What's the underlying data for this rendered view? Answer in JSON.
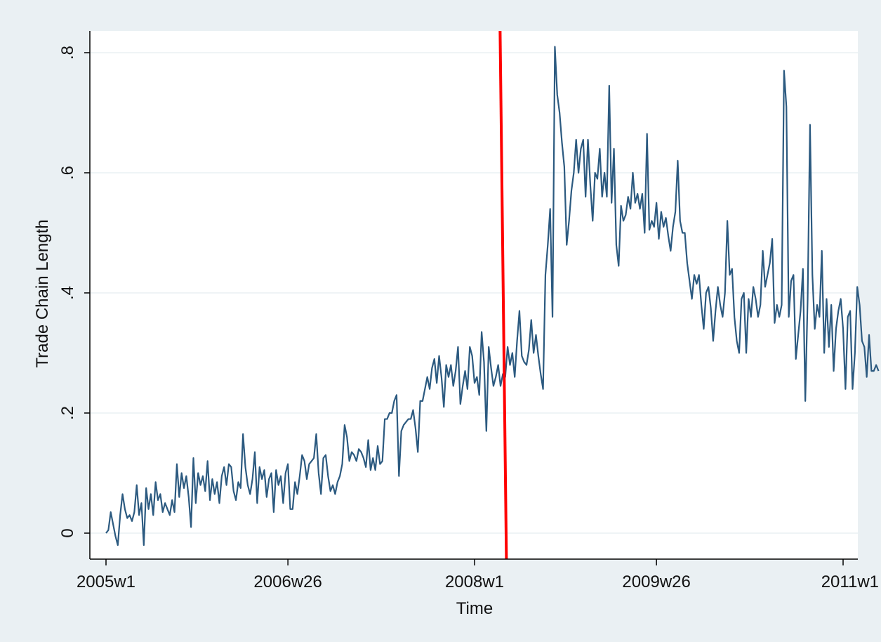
{
  "colors": {
    "outer_background": "#eaf0f3",
    "plot_background": "#ffffff",
    "gridline": "#eaf0f3",
    "series_line": "#2c5a80",
    "event_line": "#ff0000",
    "axis": "#000000"
  },
  "chart_data": {
    "type": "line",
    "xlabel": "Time",
    "ylabel": "Trade Chain Length",
    "x_unit": "week",
    "xlim": [
      "2005w1",
      "2011w1"
    ],
    "ylim": [
      -0.04,
      0.84
    ],
    "grid": true,
    "x_ticks": [
      {
        "week": "2005w1",
        "label": "2005w1"
      },
      {
        "week": "2006w26",
        "label": "2006w26"
      },
      {
        "week": "2008w1",
        "label": "2008w1"
      },
      {
        "week": "2009w26",
        "label": "2009w26"
      },
      {
        "week": "2011w1",
        "label": "2011w1"
      }
    ],
    "y_ticks": [
      {
        "value": 0,
        "label": "0"
      },
      {
        "value": 0.2,
        "label": ".2"
      },
      {
        "value": 0.4,
        "label": ".4"
      },
      {
        "value": 0.6,
        "label": ".6"
      },
      {
        "value": 0.8,
        "label": ".8"
      }
    ],
    "event_line": {
      "week": "2008w13",
      "color": "#ff0000"
    },
    "series": [
      {
        "color": "#2c5a80",
        "start_week": "2005w1",
        "values": [
          0.0,
          0.005,
          0.035,
          0.015,
          -0.005,
          -0.02,
          0.03,
          0.065,
          0.04,
          0.025,
          0.03,
          0.02,
          0.035,
          0.08,
          0.03,
          0.05,
          -0.02,
          0.075,
          0.04,
          0.065,
          0.03,
          0.085,
          0.055,
          0.065,
          0.035,
          0.05,
          0.04,
          0.03,
          0.055,
          0.035,
          0.115,
          0.06,
          0.1,
          0.075,
          0.095,
          0.06,
          0.01,
          0.125,
          0.05,
          0.1,
          0.08,
          0.095,
          0.07,
          0.12,
          0.055,
          0.09,
          0.065,
          0.085,
          0.05,
          0.095,
          0.11,
          0.08,
          0.115,
          0.11,
          0.07,
          0.055,
          0.085,
          0.075,
          0.165,
          0.11,
          0.08,
          0.065,
          0.09,
          0.135,
          0.05,
          0.11,
          0.09,
          0.105,
          0.06,
          0.09,
          0.1,
          0.035,
          0.105,
          0.08,
          0.095,
          0.05,
          0.1,
          0.115,
          0.04,
          0.04,
          0.085,
          0.065,
          0.095,
          0.13,
          0.12,
          0.09,
          0.115,
          0.12,
          0.125,
          0.165,
          0.1,
          0.065,
          0.125,
          0.13,
          0.095,
          0.07,
          0.08,
          0.065,
          0.085,
          0.095,
          0.115,
          0.18,
          0.16,
          0.12,
          0.135,
          0.13,
          0.12,
          0.14,
          0.135,
          0.125,
          0.11,
          0.155,
          0.105,
          0.125,
          0.105,
          0.145,
          0.115,
          0.12,
          0.19,
          0.19,
          0.2,
          0.2,
          0.22,
          0.23,
          0.095,
          0.17,
          0.18,
          0.185,
          0.19,
          0.19,
          0.205,
          0.175,
          0.135,
          0.22,
          0.22,
          0.24,
          0.26,
          0.24,
          0.275,
          0.29,
          0.25,
          0.295,
          0.26,
          0.21,
          0.28,
          0.26,
          0.28,
          0.245,
          0.27,
          0.31,
          0.215,
          0.245,
          0.27,
          0.24,
          0.31,
          0.295,
          0.25,
          0.26,
          0.23,
          0.335,
          0.285,
          0.17,
          0.31,
          0.275,
          0.245,
          0.26,
          0.28,
          0.245,
          0.265,
          0.26,
          0.31,
          0.28,
          0.3,
          0.26,
          0.32,
          0.37,
          0.295,
          0.285,
          0.28,
          0.305,
          0.355,
          0.3,
          0.33,
          0.295,
          0.265,
          0.24,
          0.43,
          0.48,
          0.54,
          0.36,
          0.81,
          0.73,
          0.7,
          0.65,
          0.61,
          0.48,
          0.52,
          0.57,
          0.6,
          0.655,
          0.6,
          0.64,
          0.655,
          0.56,
          0.655,
          0.58,
          0.52,
          0.6,
          0.59,
          0.64,
          0.56,
          0.6,
          0.56,
          0.745,
          0.55,
          0.64,
          0.48,
          0.445,
          0.545,
          0.52,
          0.53,
          0.56,
          0.54,
          0.6,
          0.55,
          0.565,
          0.54,
          0.565,
          0.5,
          0.665,
          0.505,
          0.52,
          0.51,
          0.55,
          0.49,
          0.535,
          0.51,
          0.525,
          0.495,
          0.47,
          0.51,
          0.535,
          0.62,
          0.52,
          0.5,
          0.5,
          0.45,
          0.42,
          0.39,
          0.43,
          0.415,
          0.43,
          0.38,
          0.34,
          0.4,
          0.41,
          0.375,
          0.32,
          0.37,
          0.41,
          0.38,
          0.36,
          0.4,
          0.52,
          0.43,
          0.44,
          0.36,
          0.32,
          0.3,
          0.39,
          0.4,
          0.3,
          0.39,
          0.36,
          0.41,
          0.39,
          0.36,
          0.38,
          0.47,
          0.41,
          0.43,
          0.45,
          0.49,
          0.35,
          0.38,
          0.36,
          0.38,
          0.77,
          0.71,
          0.36,
          0.42,
          0.43,
          0.29,
          0.33,
          0.37,
          0.44,
          0.22,
          0.39,
          0.68,
          0.43,
          0.34,
          0.38,
          0.36,
          0.47,
          0.3,
          0.39,
          0.31,
          0.38,
          0.27,
          0.34,
          0.37,
          0.39,
          0.34,
          0.24,
          0.36,
          0.37,
          0.24,
          0.3,
          0.41,
          0.38,
          0.32,
          0.31,
          0.26,
          0.33,
          0.27,
          0.27,
          0.28,
          0.27
        ]
      }
    ]
  }
}
